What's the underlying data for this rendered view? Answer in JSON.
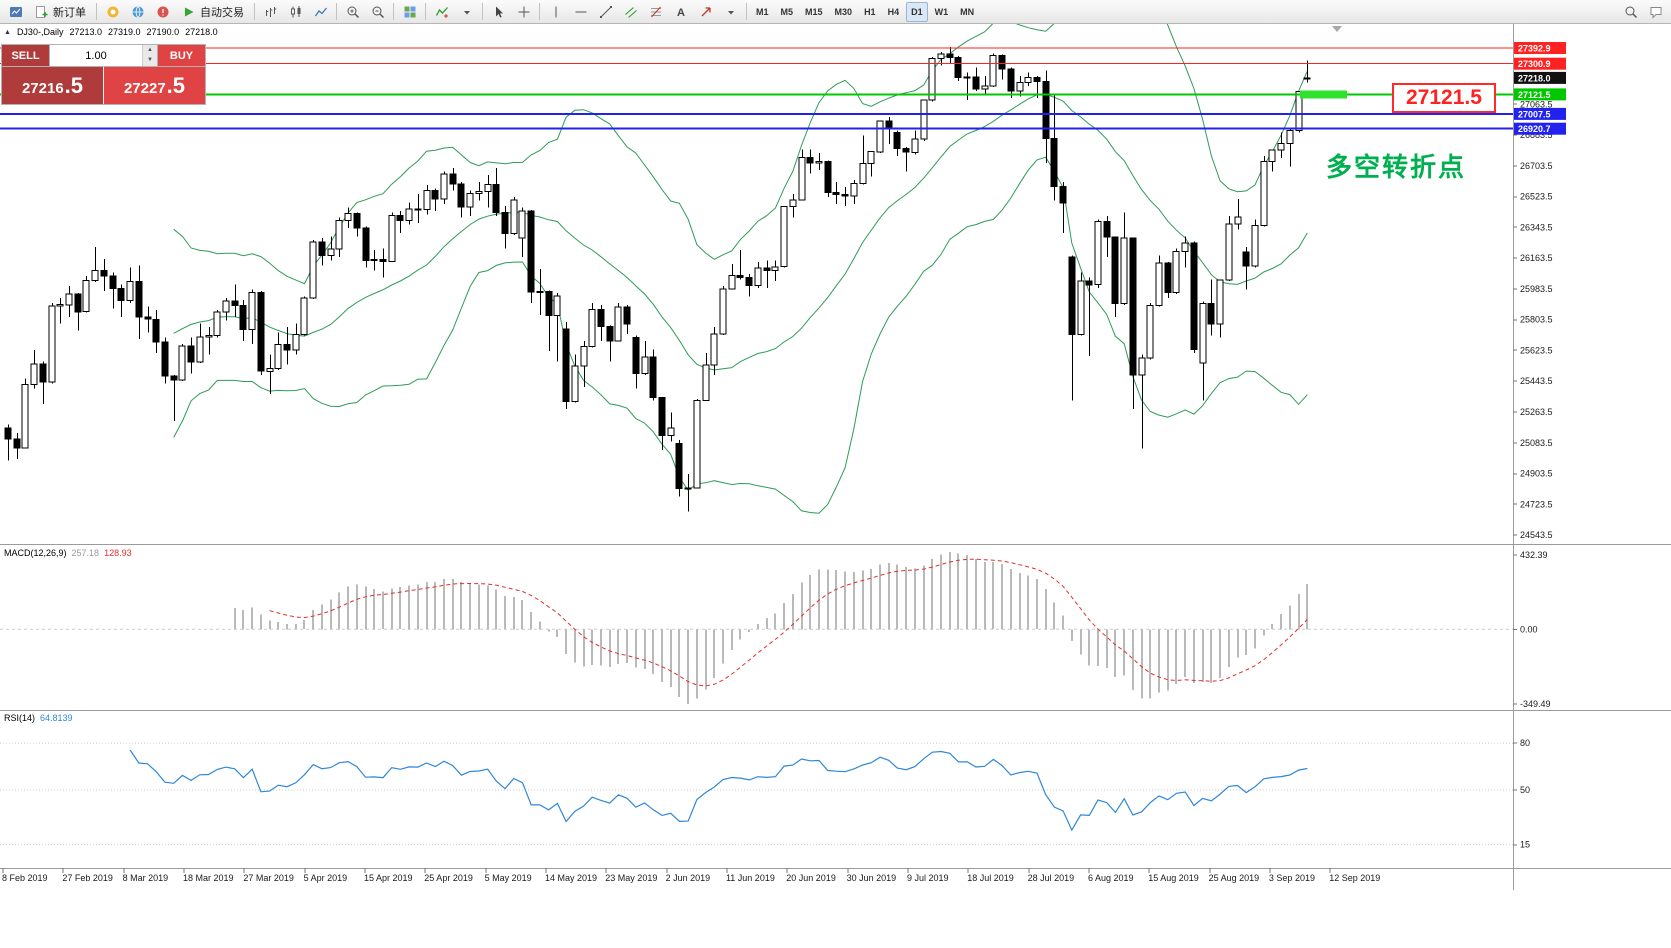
{
  "toolbar": {
    "new_order_label": "新订单",
    "autotrading_label": "自动交易",
    "timeframes": [
      "M1",
      "M5",
      "M15",
      "M30",
      "H1",
      "H4",
      "D1",
      "W1",
      "MN"
    ],
    "active_timeframe": "D1"
  },
  "chart_info": {
    "symbol": "DJ30-,Daily",
    "open": "27213.0",
    "high": "27319.0",
    "low": "27190.0",
    "close": "27218.0"
  },
  "trade_panel": {
    "sell_label": "SELL",
    "buy_label": "BUY",
    "volume": "1.00",
    "bid": "27216.5",
    "ask": "27227.5",
    "bid_main": "27216",
    "bid_pips": ".5",
    "ask_main": "27227",
    "ask_pips": ".5"
  },
  "annotations": {
    "turning_point": "多空转折点",
    "price_callout": "27121.5"
  },
  "chart_data": {
    "type": "candlestick",
    "title": "DJ30-,Daily",
    "y_axis_ticks": [
      "27063.5",
      "26883.5",
      "26703.5",
      "26523.5",
      "26343.5",
      "26163.5",
      "25983.5",
      "25803.5",
      "25623.5",
      "25443.5",
      "25263.5",
      "25083.5",
      "24903.5",
      "24723.5",
      "24543.5"
    ],
    "x_axis_dates": [
      "8 Feb 2019",
      "27 Feb 2019",
      "8 Mar 2019",
      "18 Mar 2019",
      "27 Mar 2019",
      "5 Apr 2019",
      "15 Apr 2019",
      "25 Apr 2019",
      "5 May 2019",
      "14 May 2019",
      "23 May 2019",
      "2 Jun 2019",
      "11 Jun 2019",
      "20 Jun 2019",
      "30 Jun 2019",
      "9 Jul 2019",
      "18 Jul 2019",
      "28 Jul 2019",
      "6 Aug 2019",
      "15 Aug 2019",
      "25 Aug 2019",
      "3 Sep 2019",
      "12 Sep 2019"
    ],
    "price_lines": [
      {
        "price": 27392.9,
        "label": "27392.9",
        "color": "#ff2222",
        "width": 1
      },
      {
        "price": 27300.9,
        "label": "27300.9",
        "color": "#ff2222",
        "width": 1
      },
      {
        "price": 27121.5,
        "label": "27121.5",
        "color": "#00c800",
        "width": 2
      },
      {
        "price": 27007.5,
        "label": "27007.5",
        "color": "#2222ee",
        "width": 2
      },
      {
        "price": 26920.7,
        "label": "26920.7",
        "color": "#2222ee",
        "width": 2
      }
    ],
    "current_price_label": {
      "price": 27218.0,
      "text": "27218.0",
      "bg": "#111111"
    },
    "highlight_marker": {
      "price": 27121.5,
      "color": "#2ee22e"
    },
    "indicators": {
      "bollinger": {
        "period": 20,
        "deviation": 2,
        "color": "#2e9b57"
      },
      "macd": {
        "label": "MACD(12,26,9)",
        "value_main": "257.18",
        "value_signal": "128.93",
        "scale": [
          "432.39",
          "0.00",
          "-349.49"
        ],
        "hist_color": "#b9b9b9",
        "signal_color": "#e03030"
      },
      "rsi": {
        "label": "RSI(14)",
        "value": "64.8139",
        "scale": [
          "80",
          "50",
          "15"
        ],
        "color": "#2f87d8"
      }
    },
    "candles": [
      [
        25170,
        25190,
        24980,
        25106
      ],
      [
        25106,
        25140,
        24990,
        25053
      ],
      [
        25053,
        25460,
        25050,
        25425
      ],
      [
        25425,
        25625,
        25400,
        25543
      ],
      [
        25543,
        25560,
        25310,
        25439
      ],
      [
        25439,
        25900,
        25430,
        25883
      ],
      [
        25883,
        25930,
        25780,
        25891
      ],
      [
        25891,
        26000,
        25820,
        25954
      ],
      [
        25954,
        25960,
        25740,
        25850
      ],
      [
        25850,
        26060,
        25845,
        26032
      ],
      [
        26032,
        26230,
        26025,
        26092
      ],
      [
        26092,
        26160,
        25970,
        26058
      ],
      [
        26058,
        26080,
        25870,
        25985
      ],
      [
        25985,
        26010,
        25820,
        25916
      ],
      [
        25916,
        26110,
        25900,
        26026
      ],
      [
        26026,
        26120,
        25690,
        25819
      ],
      [
        25819,
        25880,
        25730,
        25806
      ],
      [
        25806,
        25860,
        25610,
        25673
      ],
      [
        25673,
        25700,
        25430,
        25473
      ],
      [
        25473,
        25480,
        25210,
        25450
      ],
      [
        25450,
        25660,
        25445,
        25651
      ],
      [
        25651,
        25700,
        25490,
        25555
      ],
      [
        25555,
        25780,
        25550,
        25703
      ],
      [
        25703,
        25760,
        25600,
        25710
      ],
      [
        25710,
        25860,
        25700,
        25849
      ],
      [
        25849,
        25930,
        25800,
        25914
      ],
      [
        25914,
        26010,
        25820,
        25887
      ],
      [
        25887,
        25920,
        25680,
        25746
      ],
      [
        25746,
        25980,
        25660,
        25963
      ],
      [
        25963,
        25970,
        25480,
        25502
      ],
      [
        25502,
        25600,
        25370,
        25517
      ],
      [
        25517,
        25730,
        25510,
        25658
      ],
      [
        25658,
        25760,
        25540,
        25626
      ],
      [
        25626,
        25780,
        25600,
        25717
      ],
      [
        25717,
        25940,
        25710,
        25929
      ],
      [
        25929,
        26270,
        25925,
        26258
      ],
      [
        26258,
        26280,
        26120,
        26179
      ],
      [
        26179,
        26290,
        26150,
        26218
      ],
      [
        26218,
        26400,
        26170,
        26385
      ],
      [
        26385,
        26460,
        26340,
        26425
      ],
      [
        26425,
        26430,
        26290,
        26341
      ],
      [
        26341,
        26350,
        26110,
        26151
      ],
      [
        26151,
        26210,
        26090,
        26157
      ],
      [
        26157,
        26220,
        26050,
        26143
      ],
      [
        26143,
        26430,
        26140,
        26412
      ],
      [
        26412,
        26440,
        26310,
        26385
      ],
      [
        26385,
        26490,
        26360,
        26452
      ],
      [
        26452,
        26540,
        26370,
        26449
      ],
      [
        26449,
        26590,
        26420,
        26560
      ],
      [
        26560,
        26570,
        26440,
        26511
      ],
      [
        26511,
        26670,
        26480,
        26656
      ],
      [
        26656,
        26690,
        26560,
        26597
      ],
      [
        26597,
        26610,
        26400,
        26462
      ],
      [
        26462,
        26560,
        26410,
        26543
      ],
      [
        26543,
        26610,
        26500,
        26554
      ],
      [
        26554,
        26650,
        26460,
        26593
      ],
      [
        26593,
        26690,
        26410,
        26430
      ],
      [
        26430,
        26470,
        26220,
        26308
      ],
      [
        26308,
        26520,
        26300,
        26505
      ],
      [
        26280,
        26460,
        26170,
        26438
      ],
      [
        26438,
        26445,
        25900,
        25965
      ],
      [
        25965,
        26100,
        25830,
        25967
      ],
      [
        25967,
        25975,
        25620,
        25828
      ],
      [
        25828,
        25960,
        25560,
        25942
      ],
      [
        25750,
        25790,
        25280,
        25325
      ],
      [
        25325,
        25600,
        25320,
        25532
      ],
      [
        25532,
        25680,
        25410,
        25648
      ],
      [
        25648,
        25900,
        25640,
        25863
      ],
      [
        25863,
        25890,
        25680,
        25764
      ],
      [
        25764,
        25770,
        25560,
        25680
      ],
      [
        25680,
        25900,
        25675,
        25877
      ],
      [
        25877,
        25890,
        25720,
        25777
      ],
      [
        25700,
        25710,
        25400,
        25490
      ],
      [
        25490,
        25680,
        25480,
        25586
      ],
      [
        25586,
        25630,
        25330,
        25348
      ],
      [
        25348,
        25350,
        25040,
        25126
      ],
      [
        25126,
        25260,
        25090,
        25170
      ],
      [
        25080,
        25100,
        24770,
        24815
      ],
      [
        24815,
        24900,
        24680,
        24820
      ],
      [
        24820,
        25340,
        24815,
        25332
      ],
      [
        25332,
        25610,
        25330,
        25539
      ],
      [
        25539,
        25760,
        25480,
        25721
      ],
      [
        25721,
        26000,
        25715,
        25984
      ],
      [
        25984,
        26130,
        25980,
        26063
      ],
      [
        26063,
        26210,
        26040,
        26049
      ],
      [
        26049,
        26070,
        25940,
        26004
      ],
      [
        26004,
        26140,
        25990,
        26107
      ],
      [
        26107,
        26150,
        25990,
        26090
      ],
      [
        26090,
        26150,
        26030,
        26113
      ],
      [
        26113,
        26470,
        26110,
        26466
      ],
      [
        26466,
        26540,
        26400,
        26504
      ],
      [
        26504,
        26800,
        26500,
        26753
      ],
      [
        26753,
        26800,
        26660,
        26719
      ],
      [
        26719,
        26780,
        26680,
        26728
      ],
      [
        26728,
        26735,
        26520,
        26548
      ],
      [
        26548,
        26610,
        26480,
        26536
      ],
      [
        26536,
        26580,
        26470,
        26527
      ],
      [
        26527,
        26620,
        26480,
        26600
      ],
      [
        26600,
        26880,
        26595,
        26717
      ],
      [
        26717,
        26790,
        26640,
        26786
      ],
      [
        26786,
        26970,
        26780,
        26966
      ],
      [
        26966,
        26990,
        26830,
        26922
      ],
      [
        26900,
        26910,
        26760,
        26806
      ],
      [
        26806,
        26815,
        26670,
        26783
      ],
      [
        26783,
        26910,
        26770,
        26860
      ],
      [
        26860,
        27090,
        26850,
        27088
      ],
      [
        27088,
        27340,
        27080,
        27332
      ],
      [
        27332,
        27370,
        27290,
        27359
      ],
      [
        27359,
        27398,
        27300,
        27336
      ],
      [
        27336,
        27345,
        27200,
        27220
      ],
      [
        27220,
        27250,
        27090,
        27223
      ],
      [
        27223,
        27280,
        27140,
        27154
      ],
      [
        27154,
        27230,
        27120,
        27172
      ],
      [
        27172,
        27360,
        27165,
        27349
      ],
      [
        27349,
        27355,
        27210,
        27270
      ],
      [
        27270,
        27280,
        27100,
        27141
      ],
      [
        27141,
        27230,
        27110,
        27192
      ],
      [
        27192,
        27250,
        27170,
        27221
      ],
      [
        27221,
        27230,
        27100,
        27198
      ],
      [
        27198,
        27260,
        26720,
        26864
      ],
      [
        26864,
        27120,
        26500,
        26583
      ],
      [
        26583,
        26610,
        26310,
        26485
      ],
      [
        26170,
        26180,
        25330,
        25718
      ],
      [
        25718,
        26080,
        25710,
        26030
      ],
      [
        26030,
        26050,
        25590,
        26008
      ],
      [
        26008,
        26390,
        25990,
        26378
      ],
      [
        26378,
        26410,
        26170,
        26287
      ],
      [
        26287,
        26290,
        25820,
        25897
      ],
      [
        25897,
        26430,
        25890,
        26280
      ],
      [
        26280,
        26285,
        25280,
        25479
      ],
      [
        25479,
        25600,
        25050,
        25579
      ],
      [
        25579,
        25900,
        25570,
        25886
      ],
      [
        25886,
        26180,
        25880,
        26136
      ],
      [
        26136,
        26140,
        25930,
        25962
      ],
      [
        25962,
        26220,
        25955,
        26203
      ],
      [
        26203,
        26290,
        26110,
        26252
      ],
      [
        26252,
        26260,
        25610,
        25629
      ],
      [
        25550,
        25910,
        25330,
        25898
      ],
      [
        25898,
        26040,
        25710,
        25778
      ],
      [
        25778,
        26040,
        25700,
        26036
      ],
      [
        26036,
        26410,
        26030,
        26362
      ],
      [
        26362,
        26510,
        26330,
        26403
      ],
      [
        26200,
        26230,
        25980,
        26118
      ],
      [
        26118,
        26390,
        26110,
        26355
      ],
      [
        26355,
        26760,
        26350,
        26728
      ],
      [
        26728,
        26800,
        26670,
        26797
      ],
      [
        26797,
        26900,
        26750,
        26835
      ],
      [
        26835,
        26920,
        26700,
        26909
      ],
      [
        26909,
        27140,
        26900,
        27137
      ],
      [
        27213,
        27319,
        27190,
        27218
      ]
    ]
  }
}
